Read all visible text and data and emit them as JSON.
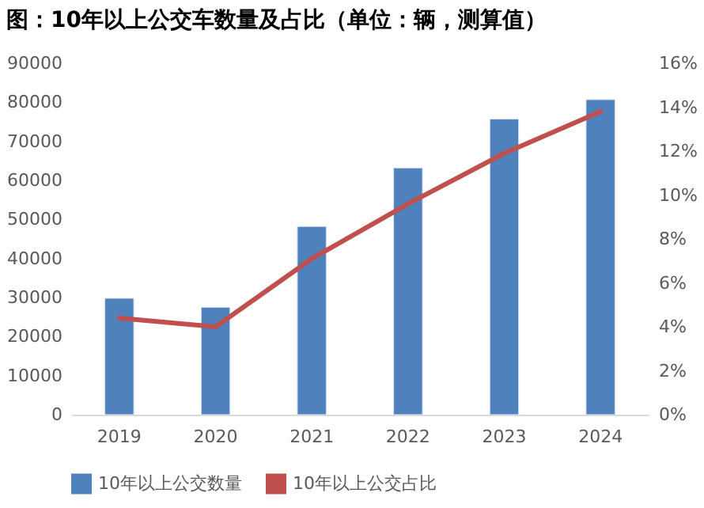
{
  "chart_data": {
    "type": "bar",
    "title": "图：10年以上公交车数量及占比（单位：辆，测算值）",
    "categories": [
      "2019",
      "2020",
      "2021",
      "2022",
      "2023",
      "2024"
    ],
    "series": [
      {
        "name": "10年以上公交数量",
        "color": "#4f81bd",
        "values": [
          29800,
          27500,
          48200,
          63200,
          75700,
          80700
        ]
      },
      {
        "name": "10年以上公交占比",
        "color": "#c0504d",
        "type": "line",
        "axis": "y2",
        "values": [
          4.4,
          4.0,
          7.1,
          9.6,
          11.9,
          13.8
        ]
      }
    ],
    "ylim": [
      0,
      90000
    ],
    "yticks": [
      0,
      10000,
      20000,
      30000,
      40000,
      50000,
      60000,
      70000,
      80000,
      90000
    ],
    "y2lim": [
      0,
      16
    ],
    "y2ticks": [
      {
        "value": 0,
        "label": "0%"
      },
      {
        "value": 2,
        "label": "2%"
      },
      {
        "value": 4,
        "label": "4%"
      },
      {
        "value": 6,
        "label": "6%"
      },
      {
        "value": 8,
        "label": "8%"
      },
      {
        "value": 10,
        "label": "10%"
      },
      {
        "value": 12,
        "label": "12%"
      },
      {
        "value": 14,
        "label": "14%"
      },
      {
        "value": 16,
        "label": "16%"
      }
    ],
    "grid": false,
    "legend": "bottom",
    "marker": "none",
    "line_style": "solid"
  }
}
